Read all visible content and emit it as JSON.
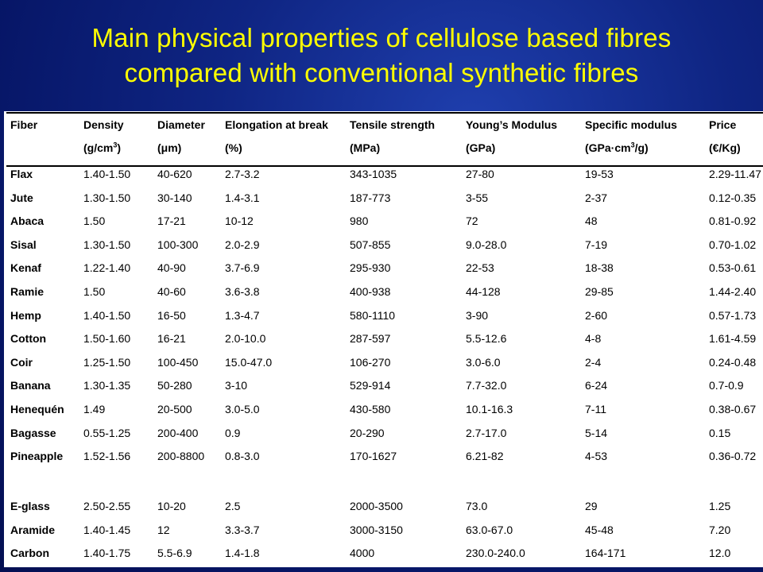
{
  "title": {
    "line1": "Main physical properties of cellulose based fibres",
    "line2": "compared with conventional synthetic fibres"
  },
  "table": {
    "headers": [
      "Fiber",
      "Density",
      "Diameter",
      "Elongation at break",
      "Tensile strength",
      "Young’s Modulus",
      "Specific modulus",
      "Price"
    ],
    "units": [
      "",
      "(g/cm3)",
      "(μm)",
      "(%)",
      "(MPa)",
      "(GPa)",
      "(GPa·cm3/g)",
      "(€/Kg)"
    ],
    "natural_rows": [
      [
        "Flax",
        "1.40-1.50",
        "40-620",
        "2.7-3.2",
        "343-1035",
        "27-80",
        "19-53",
        "2.29-11.47"
      ],
      [
        "Jute",
        "1.30-1.50",
        "30-140",
        "1.4-3.1",
        "187-773",
        "3-55",
        "2-37",
        "0.12-0.35"
      ],
      [
        "Abaca",
        "1.50",
        "17-21",
        "10-12",
        "980",
        "72",
        "48",
        "0.81-0.92"
      ],
      [
        "Sisal",
        "1.30-1.50",
        "100-300",
        "2.0-2.9",
        "507-855",
        "9.0-28.0",
        "7-19",
        "0.70-1.02"
      ],
      [
        "Kenaf",
        "1.22-1.40",
        "40-90",
        "3.7-6.9",
        "295-930",
        "22-53",
        "18-38",
        "0.53-0.61"
      ],
      [
        "Ramie",
        "1.50",
        "40-60",
        "3.6-3.8",
        "400-938",
        "44-128",
        "29-85",
        "1.44-2.40"
      ],
      [
        "Hemp",
        "1.40-1.50",
        "16-50",
        "1.3-4.7",
        "580-1110",
        "3-90",
        "2-60",
        "0.57-1.73"
      ],
      [
        "Cotton",
        "1.50-1.60",
        "16-21",
        "2.0-10.0",
        "287-597",
        "5.5-12.6",
        "4-8",
        "1.61-4.59"
      ],
      [
        "Coir",
        "1.25-1.50",
        "100-450",
        "15.0-47.0",
        "106-270",
        "3.0-6.0",
        "2-4",
        "0.24-0.48"
      ],
      [
        "Banana",
        "1.30-1.35",
        "50-280",
        "3-10",
        "529-914",
        "7.7-32.0",
        "6-24",
        "0.7-0.9"
      ],
      [
        "Henequén",
        "1.49",
        "20-500",
        "3.0-5.0",
        "430-580",
        "10.1-16.3",
        "7-11",
        "0.38-0.67"
      ],
      [
        "Bagasse",
        "0.55-1.25",
        "200-400",
        "0.9",
        "20-290",
        "2.7-17.0",
        "5-14",
        "0.15"
      ],
      [
        "Pineapple",
        "1.52-1.56",
        "200-8800",
        "0.8-3.0",
        "170-1627",
        "6.21-82",
        "4-53",
        "0.36-0.72"
      ]
    ],
    "synthetic_rows": [
      [
        "E-glass",
        "2.50-2.55",
        "10-20",
        "2.5",
        "2000-3500",
        "73.0",
        "29",
        "1.25"
      ],
      [
        "Aramide",
        "1.40-1.45",
        "12",
        "3.3-3.7",
        "3000-3150",
        "63.0-67.0",
        "45-48",
        "7.20"
      ],
      [
        "Carbon",
        "1.40-1.75",
        "5.5-6.9",
        "1.4-1.8",
        "4000",
        "230.0-240.0",
        "164-171",
        "12.0"
      ]
    ]
  }
}
